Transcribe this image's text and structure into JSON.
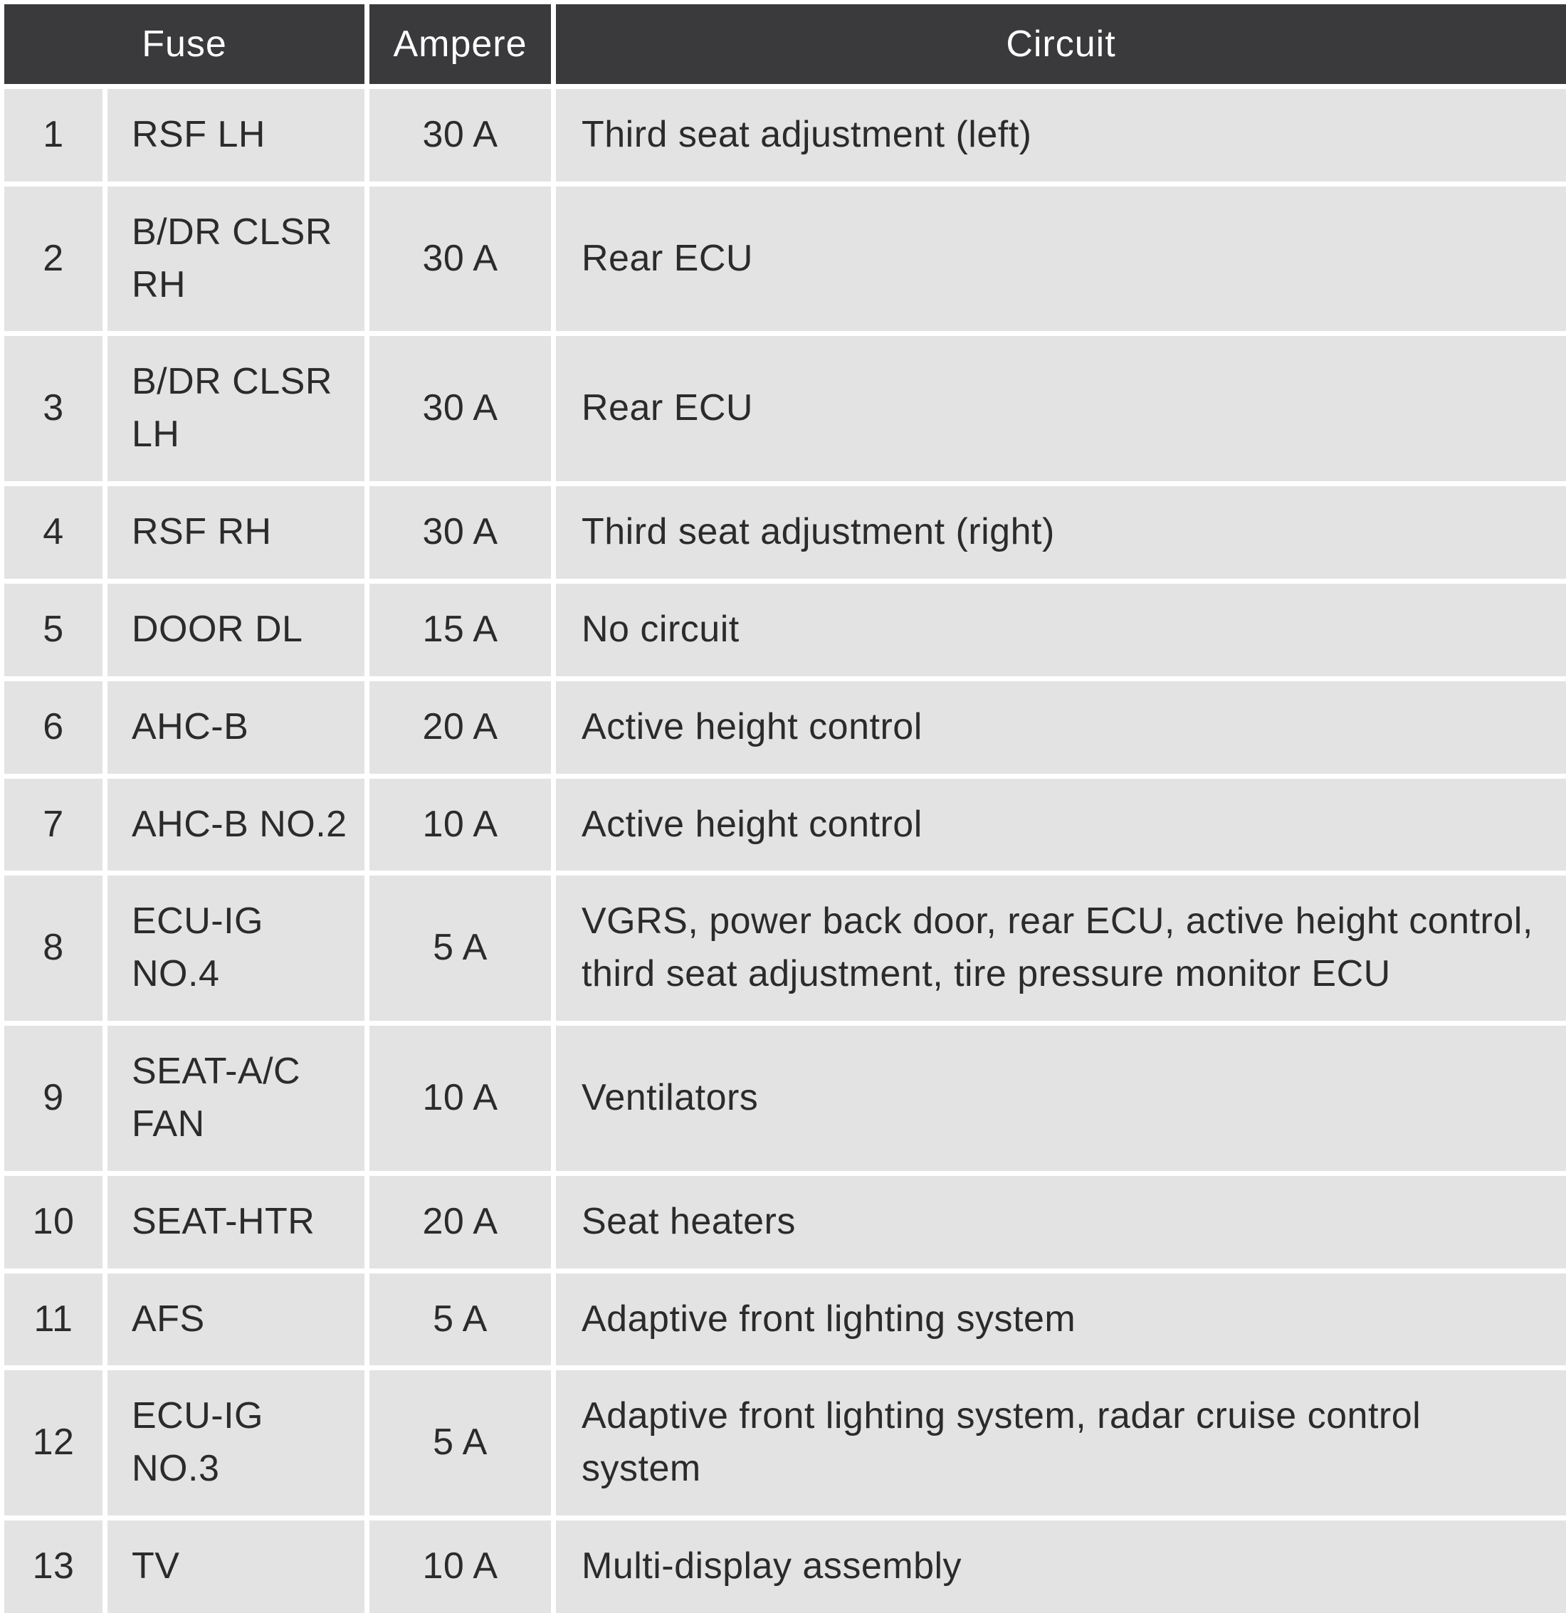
{
  "colors": {
    "header_bg": "#3a3a3c",
    "header_text": "#ffffff",
    "row_bg": "#e3e3e3",
    "text": "#2b2b2b",
    "gap": "#ffffff"
  },
  "table": {
    "headers": [
      "Fuse",
      "Ampere",
      "Circuit"
    ],
    "rows": [
      {
        "num": "1",
        "name": "RSF LH",
        "ampere": "30 A",
        "circuit": "Third seat adjustment (left)"
      },
      {
        "num": "2",
        "name": "B/DR CLSR RH",
        "ampere": "30 A",
        "circuit": "Rear ECU"
      },
      {
        "num": "3",
        "name": "B/DR CLSR LH",
        "ampere": "30 A",
        "circuit": "Rear ECU"
      },
      {
        "num": "4",
        "name": "RSF RH",
        "ampere": "30 A",
        "circuit": "Third seat adjustment (right)"
      },
      {
        "num": "5",
        "name": "DOOR DL",
        "ampere": "15 A",
        "circuit": "No circuit"
      },
      {
        "num": "6",
        "name": "AHC-B",
        "ampere": "20 A",
        "circuit": "Active height control"
      },
      {
        "num": "7",
        "name": "AHC-B NO.2",
        "ampere": "10 A",
        "circuit": "Active height control"
      },
      {
        "num": "8",
        "name": "ECU-IG NO.4",
        "ampere": "5 A",
        "circuit": "VGRS, power back door, rear ECU, active height control, third seat adjustment, tire pressure monitor ECU"
      },
      {
        "num": "9",
        "name": "SEAT-A/C FAN",
        "ampere": "10 A",
        "circuit": "Ventilators"
      },
      {
        "num": "10",
        "name": "SEAT-HTR",
        "ampere": "20 A",
        "circuit": "Seat heaters"
      },
      {
        "num": "11",
        "name": "AFS",
        "ampere": "5 A",
        "circuit": "Adaptive front lighting system"
      },
      {
        "num": "12",
        "name": "ECU-IG NO.3",
        "ampere": "5 A",
        "circuit": "Adaptive front lighting system, radar cruise control system"
      },
      {
        "num": "13",
        "name": "TV",
        "ampere": "10 A",
        "circuit": "Multi-display assembly"
      }
    ]
  }
}
